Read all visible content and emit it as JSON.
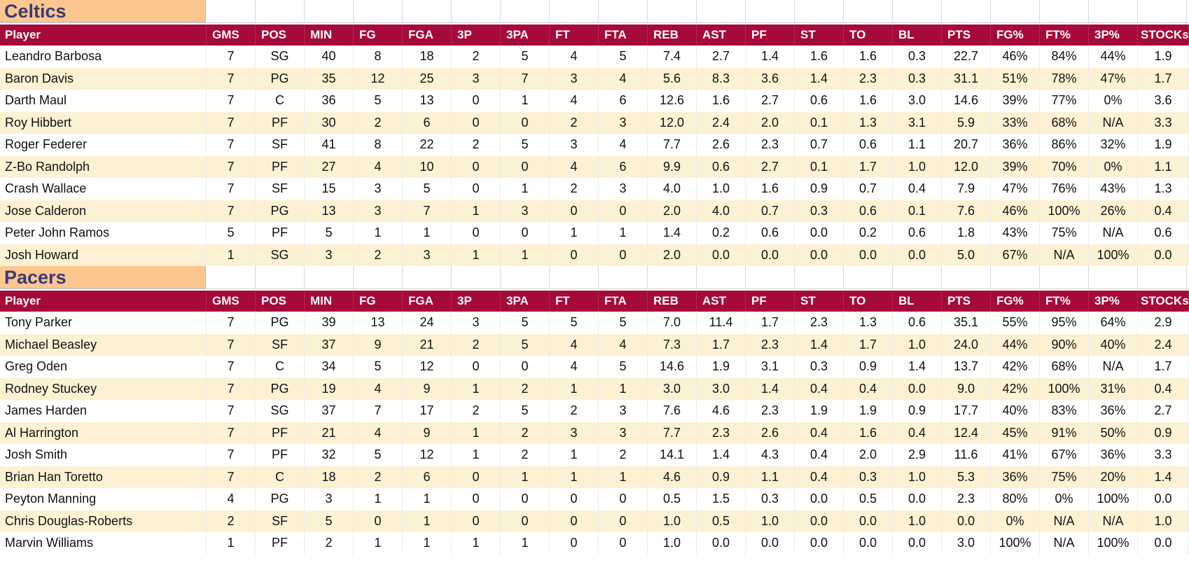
{
  "columns": [
    "Player",
    "GMS",
    "POS",
    "MIN",
    "FG",
    "FGA",
    "3P",
    "3PA",
    "FT",
    "FTA",
    "REB",
    "AST",
    "PF",
    "ST",
    "TO",
    "BL",
    "PTS",
    "FG%",
    "FT%",
    "3P%",
    "STOCKs"
  ],
  "teams": [
    {
      "name": "Celtics",
      "rows": [
        [
          "Leandro Barbosa",
          "7",
          "SG",
          "40",
          "8",
          "18",
          "2",
          "5",
          "4",
          "5",
          "7.4",
          "2.7",
          "1.4",
          "1.6",
          "1.6",
          "0.3",
          "22.7",
          "46%",
          "84%",
          "44%",
          "1.9"
        ],
        [
          "Baron Davis",
          "7",
          "PG",
          "35",
          "12",
          "25",
          "3",
          "7",
          "3",
          "4",
          "5.6",
          "8.3",
          "3.6",
          "1.4",
          "2.3",
          "0.3",
          "31.1",
          "51%",
          "78%",
          "47%",
          "1.7"
        ],
        [
          "Darth Maul",
          "7",
          "C",
          "36",
          "5",
          "13",
          "0",
          "1",
          "4",
          "6",
          "12.6",
          "1.6",
          "2.7",
          "0.6",
          "1.6",
          "3.0",
          "14.6",
          "39%",
          "77%",
          "0%",
          "3.6"
        ],
        [
          "Roy Hibbert",
          "7",
          "PF",
          "30",
          "2",
          "6",
          "0",
          "0",
          "2",
          "3",
          "12.0",
          "2.4",
          "2.0",
          "0.1",
          "1.3",
          "3.1",
          "5.9",
          "33%",
          "68%",
          "N/A",
          "3.3"
        ],
        [
          "Roger Federer",
          "7",
          "SF",
          "41",
          "8",
          "22",
          "2",
          "5",
          "3",
          "4",
          "7.7",
          "2.6",
          "2.3",
          "0.7",
          "0.6",
          "1.1",
          "20.7",
          "36%",
          "86%",
          "32%",
          "1.9"
        ],
        [
          "Z-Bo Randolph",
          "7",
          "PF",
          "27",
          "4",
          "10",
          "0",
          "0",
          "4",
          "6",
          "9.9",
          "0.6",
          "2.7",
          "0.1",
          "1.7",
          "1.0",
          "12.0",
          "39%",
          "70%",
          "0%",
          "1.1"
        ],
        [
          "Crash Wallace",
          "7",
          "SF",
          "15",
          "3",
          "5",
          "0",
          "1",
          "2",
          "3",
          "4.0",
          "1.0",
          "1.6",
          "0.9",
          "0.7",
          "0.4",
          "7.9",
          "47%",
          "76%",
          "43%",
          "1.3"
        ],
        [
          "Jose Calderon",
          "7",
          "PG",
          "13",
          "3",
          "7",
          "1",
          "3",
          "0",
          "0",
          "2.0",
          "4.0",
          "0.7",
          "0.3",
          "0.6",
          "0.1",
          "7.6",
          "46%",
          "100%",
          "26%",
          "0.4"
        ],
        [
          "Peter John Ramos",
          "5",
          "PF",
          "5",
          "1",
          "1",
          "0",
          "0",
          "1",
          "1",
          "1.4",
          "0.2",
          "0.6",
          "0.0",
          "0.2",
          "0.6",
          "1.8",
          "43%",
          "75%",
          "N/A",
          "0.6"
        ],
        [
          "Josh Howard",
          "1",
          "SG",
          "3",
          "2",
          "3",
          "1",
          "1",
          "0",
          "0",
          "2.0",
          "0.0",
          "0.0",
          "0.0",
          "0.0",
          "0.0",
          "5.0",
          "67%",
          "N/A",
          "100%",
          "0.0"
        ]
      ]
    },
    {
      "name": "Pacers",
      "rows": [
        [
          "Tony Parker",
          "7",
          "PG",
          "39",
          "13",
          "24",
          "3",
          "5",
          "5",
          "5",
          "7.0",
          "11.4",
          "1.7",
          "2.3",
          "1.3",
          "0.6",
          "35.1",
          "55%",
          "95%",
          "64%",
          "2.9"
        ],
        [
          "Michael Beasley",
          "7",
          "SF",
          "37",
          "9",
          "21",
          "2",
          "5",
          "4",
          "4",
          "7.3",
          "1.7",
          "2.3",
          "1.4",
          "1.7",
          "1.0",
          "24.0",
          "44%",
          "90%",
          "40%",
          "2.4"
        ],
        [
          "Greg Oden",
          "7",
          "C",
          "34",
          "5",
          "12",
          "0",
          "0",
          "4",
          "5",
          "14.6",
          "1.9",
          "3.1",
          "0.3",
          "0.9",
          "1.4",
          "13.7",
          "42%",
          "68%",
          "N/A",
          "1.7"
        ],
        [
          "Rodney Stuckey",
          "7",
          "PG",
          "19",
          "4",
          "9",
          "1",
          "2",
          "1",
          "1",
          "3.0",
          "3.0",
          "1.4",
          "0.4",
          "0.4",
          "0.0",
          "9.0",
          "42%",
          "100%",
          "31%",
          "0.4"
        ],
        [
          "James Harden",
          "7",
          "SG",
          "37",
          "7",
          "17",
          "2",
          "5",
          "2",
          "3",
          "7.6",
          "4.6",
          "2.3",
          "1.9",
          "1.9",
          "0.9",
          "17.7",
          "40%",
          "83%",
          "36%",
          "2.7"
        ],
        [
          "Al Harrington",
          "7",
          "PF",
          "21",
          "4",
          "9",
          "1",
          "2",
          "3",
          "3",
          "7.7",
          "2.3",
          "2.6",
          "0.4",
          "1.6",
          "0.4",
          "12.4",
          "45%",
          "91%",
          "50%",
          "0.9"
        ],
        [
          "Josh Smith",
          "7",
          "PF",
          "32",
          "5",
          "12",
          "1",
          "2",
          "1",
          "2",
          "14.1",
          "1.4",
          "4.3",
          "0.4",
          "2.0",
          "2.9",
          "11.6",
          "41%",
          "67%",
          "36%",
          "3.3"
        ],
        [
          "Brian Han Toretto",
          "7",
          "C",
          "18",
          "2",
          "6",
          "0",
          "1",
          "1",
          "1",
          "4.6",
          "0.9",
          "1.1",
          "0.4",
          "0.3",
          "1.0",
          "5.3",
          "36%",
          "75%",
          "20%",
          "1.4"
        ],
        [
          "Peyton Manning",
          "4",
          "PG",
          "3",
          "1",
          "1",
          "0",
          "0",
          "0",
          "0",
          "0.5",
          "1.5",
          "0.3",
          "0.0",
          "0.5",
          "0.0",
          "2.3",
          "80%",
          "0%",
          "100%",
          "0.0"
        ],
        [
          "Chris Douglas-Roberts",
          "2",
          "SF",
          "5",
          "0",
          "1",
          "0",
          "0",
          "0",
          "0",
          "1.0",
          "0.5",
          "1.0",
          "0.0",
          "0.0",
          "1.0",
          "0.0",
          "0%",
          "N/A",
          "N/A",
          "1.0"
        ],
        [
          "Marvin Williams",
          "1",
          "PF",
          "2",
          "1",
          "1",
          "1",
          "1",
          "0",
          "0",
          "1.0",
          "0.0",
          "0.0",
          "0.0",
          "0.0",
          "0.0",
          "3.0",
          "100%",
          "N/A",
          "100%",
          "0.0"
        ]
      ]
    }
  ],
  "colors": {
    "header_bg": "#a50a3a",
    "team_label_bg": "#fcc78f",
    "team_label_text": "#3a3a77",
    "band_row_bg": "#fdf1d3"
  }
}
